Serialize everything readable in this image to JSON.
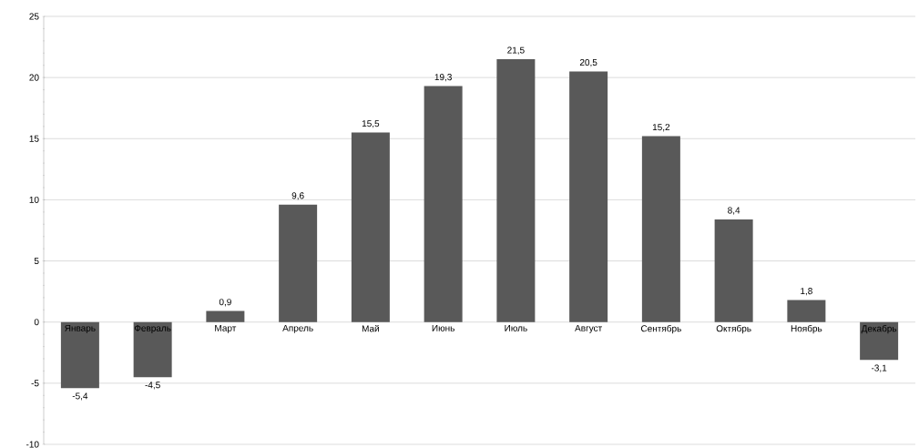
{
  "chart_data": {
    "type": "bar",
    "categories": [
      "Январь",
      "Февраль",
      "Март",
      "Апрель",
      "Май",
      "Июнь",
      "Июль",
      "Август",
      "Сентябрь",
      "Октябрь",
      "Ноябрь",
      "Декабрь"
    ],
    "values": [
      -5.4,
      -4.5,
      0.9,
      9.6,
      15.5,
      19.3,
      21.5,
      20.5,
      15.2,
      8.4,
      1.8,
      -3.1
    ],
    "value_labels": [
      "-5,4",
      "-4,5",
      "0,9",
      "9,6",
      "15,5",
      "19,3",
      "21,5",
      "20,5",
      "15,2",
      "8,4",
      "1,8",
      "-3,1"
    ],
    "color": "#595959",
    "ylim": [
      -10,
      25
    ],
    "yticks": [
      -10,
      -5,
      0,
      5,
      10,
      15,
      20,
      25
    ],
    "grid": "y"
  }
}
